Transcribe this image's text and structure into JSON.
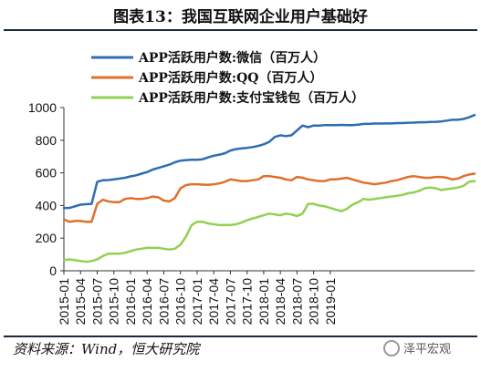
{
  "header": {
    "title": "图表13：我国互联网企业用户基础好"
  },
  "footer": {
    "source": "资料来源：Wind，恒大研究院",
    "watermark": "泽平宏观"
  },
  "chart_data": {
    "type": "line",
    "ylim": [
      0,
      1000
    ],
    "yticks": [
      0,
      200,
      400,
      600,
      800,
      1000
    ],
    "x_start": "2015-01",
    "x_labels": [
      "2015-01",
      "2015-04",
      "2015-07",
      "2015-10",
      "2016-01",
      "2016-04",
      "2016-07",
      "2016-10",
      "2017-01",
      "2017-04",
      "2017-07",
      "2017-10",
      "2018-01",
      "2018-04",
      "2018-07",
      "2018-10",
      "2019-01"
    ],
    "series": [
      {
        "name": "APP活跃用户数:微信（百万人）",
        "color": "#2e6db4",
        "values": [
          385,
          385,
          395,
          405,
          408,
          410,
          545,
          555,
          556,
          560,
          565,
          570,
          578,
          585,
          595,
          605,
          620,
          630,
          640,
          650,
          665,
          675,
          678,
          680,
          680,
          683,
          695,
          705,
          712,
          720,
          737,
          745,
          750,
          753,
          758,
          765,
          775,
          790,
          820,
          830,
          825,
          830,
          860,
          890,
          880,
          890,
          890,
          892,
          893,
          893,
          894,
          893,
          893,
          895,
          900,
          900,
          902,
          902,
          903,
          903,
          905,
          905,
          907,
          908,
          910,
          910,
          912,
          913,
          915,
          920,
          925,
          925,
          930,
          940,
          955
        ]
      },
      {
        "name": "APP活跃用户数:QQ（百万人）",
        "color": "#e0702b",
        "values": [
          315,
          300,
          305,
          305,
          300,
          300,
          410,
          435,
          425,
          420,
          420,
          440,
          445,
          440,
          440,
          445,
          455,
          450,
          430,
          425,
          445,
          505,
          525,
          530,
          530,
          528,
          526,
          530,
          535,
          545,
          560,
          555,
          550,
          550,
          555,
          560,
          580,
          580,
          575,
          570,
          560,
          555,
          575,
          570,
          560,
          555,
          550,
          550,
          560,
          560,
          565,
          570,
          560,
          550,
          540,
          535,
          530,
          535,
          540,
          550,
          555,
          565,
          575,
          580,
          575,
          570,
          570,
          575,
          575,
          570,
          560,
          565,
          580,
          590,
          595
        ]
      },
      {
        "name": "APP活跃用户数:支付宝钱包（百万人）",
        "color": "#92d050",
        "values": [
          65,
          70,
          65,
          60,
          55,
          60,
          70,
          90,
          105,
          105,
          105,
          110,
          120,
          130,
          135,
          140,
          140,
          140,
          135,
          130,
          135,
          160,
          210,
          280,
          300,
          300,
          290,
          285,
          280,
          280,
          280,
          285,
          295,
          310,
          320,
          330,
          340,
          350,
          345,
          340,
          350,
          345,
          335,
          350,
          410,
          410,
          400,
          395,
          385,
          375,
          365,
          380,
          405,
          420,
          440,
          435,
          440,
          445,
          450,
          455,
          460,
          465,
          475,
          480,
          490,
          505,
          510,
          505,
          495,
          500,
          505,
          510,
          520,
          545,
          550
        ]
      }
    ]
  }
}
